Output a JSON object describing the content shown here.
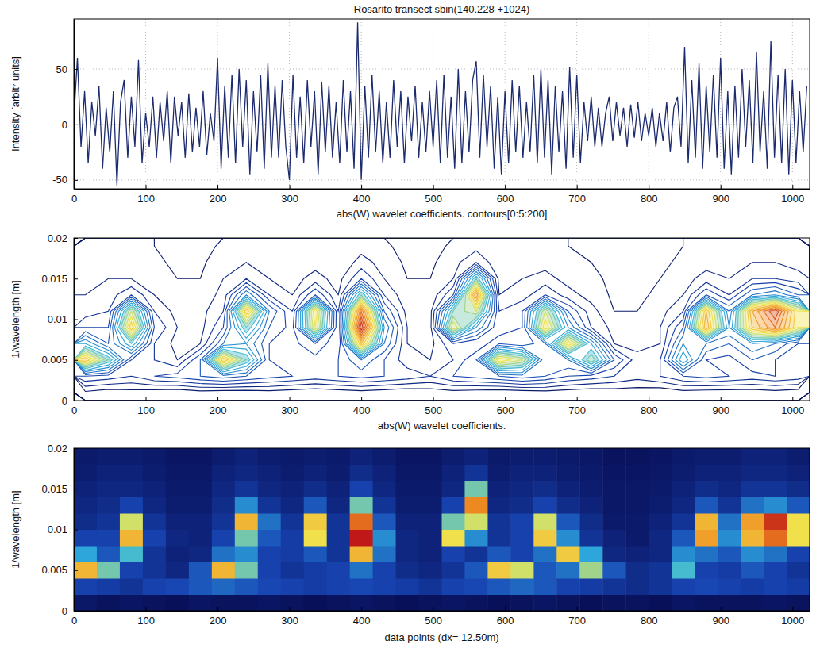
{
  "chart_data": [
    {
      "type": "line",
      "title": "Rosarito transect sbin(140.228 +1024)",
      "y_label": "Intensity [arbitr units]",
      "color": "#1c2a6e",
      "grid": true,
      "xlim": [
        0,
        1024
      ],
      "ylim": [
        -58,
        95
      ],
      "xticks": [
        0,
        100,
        200,
        300,
        400,
        500,
        600,
        700,
        800,
        900,
        1000
      ],
      "yticks": [
        -50,
        0,
        50
      ],
      "x": [
        0,
        5,
        10,
        15,
        20,
        25,
        30,
        35,
        40,
        45,
        50,
        55,
        60,
        65,
        70,
        75,
        80,
        85,
        90,
        95,
        100,
        105,
        110,
        115,
        120,
        125,
        130,
        135,
        140,
        145,
        150,
        155,
        160,
        165,
        170,
        175,
        180,
        185,
        190,
        195,
        200,
        205,
        210,
        215,
        220,
        225,
        230,
        235,
        240,
        245,
        250,
        255,
        260,
        265,
        270,
        275,
        280,
        285,
        290,
        295,
        300,
        305,
        310,
        315,
        320,
        325,
        330,
        335,
        340,
        345,
        350,
        355,
        360,
        365,
        370,
        375,
        380,
        385,
        390,
        395,
        400,
        405,
        410,
        415,
        420,
        425,
        430,
        435,
        440,
        445,
        450,
        455,
        460,
        465,
        470,
        475,
        480,
        485,
        490,
        495,
        500,
        505,
        510,
        515,
        520,
        525,
        530,
        535,
        540,
        545,
        550,
        555,
        560,
        565,
        570,
        575,
        580,
        585,
        590,
        595,
        600,
        605,
        610,
        615,
        620,
        625,
        630,
        635,
        640,
        645,
        650,
        655,
        660,
        665,
        670,
        675,
        680,
        685,
        690,
        695,
        700,
        705,
        710,
        715,
        720,
        725,
        730,
        735,
        740,
        745,
        750,
        755,
        760,
        765,
        770,
        775,
        780,
        785,
        790,
        795,
        800,
        805,
        810,
        815,
        820,
        825,
        830,
        835,
        840,
        845,
        850,
        855,
        860,
        865,
        870,
        875,
        880,
        885,
        890,
        895,
        900,
        905,
        910,
        915,
        920,
        925,
        930,
        935,
        940,
        945,
        950,
        955,
        960,
        965,
        970,
        975,
        980,
        985,
        990,
        995,
        1000,
        1005,
        1010,
        1015,
        1020
      ],
      "values": [
        5,
        60,
        -20,
        30,
        -35,
        20,
        -10,
        35,
        -40,
        15,
        -25,
        30,
        -55,
        20,
        40,
        -30,
        25,
        -20,
        58,
        -35,
        10,
        -20,
        25,
        -30,
        20,
        -15,
        30,
        -35,
        25,
        -10,
        20,
        -30,
        28,
        -25,
        15,
        -20,
        30,
        -28,
        10,
        -15,
        60,
        -40,
        35,
        -30,
        45,
        -35,
        50,
        -20,
        40,
        -45,
        30,
        -25,
        45,
        -40,
        55,
        -30,
        35,
        -30,
        40,
        -20,
        -50,
        45,
        -30,
        25,
        -35,
        40,
        -20,
        30,
        -45,
        38,
        -25,
        35,
        -30,
        20,
        -35,
        40,
        -25,
        30,
        -40,
        92,
        -50,
        35,
        -30,
        45,
        -25,
        30,
        -35,
        20,
        -30,
        40,
        -20,
        30,
        -35,
        25,
        -15,
        35,
        -30,
        20,
        -25,
        30,
        -20,
        40,
        -35,
        45,
        -30,
        25,
        -40,
        50,
        -35,
        30,
        -25,
        40,
        57,
        -30,
        45,
        -20,
        35,
        -40,
        25,
        -45,
        30,
        -35,
        40,
        -25,
        35,
        -30,
        20,
        -25,
        45,
        -35,
        50,
        -30,
        40,
        -45,
        35,
        -25,
        30,
        -40,
        52,
        -30,
        45,
        -35,
        20,
        -15,
        25,
        -20,
        15,
        -20,
        10,
        25,
        -15,
        20,
        -10,
        15,
        -20,
        18,
        -12,
        20,
        -15,
        10,
        -10,
        15,
        -20,
        10,
        -15,
        20,
        -25,
        15,
        25,
        -20,
        70,
        -35,
        40,
        -30,
        55,
        -40,
        35,
        -25,
        45,
        -30,
        60,
        -40,
        30,
        -45,
        35,
        -30,
        50,
        -20,
        40,
        -35,
        65,
        -25,
        30,
        -40,
        75,
        -30,
        45,
        -35,
        50,
        -45,
        40,
        -35,
        30,
        -25,
        35
      ]
    },
    {
      "type": "contour",
      "title": "abs(W) wavelet coefficients. contours[0:5:200]",
      "y_label": "1/wavelength [m]",
      "levels": [
        0,
        5,
        200
      ],
      "xlim": [
        0,
        1024
      ],
      "ylim": [
        0,
        0.02
      ],
      "xticks": [
        0,
        100,
        200,
        300,
        400,
        500,
        600,
        700,
        800,
        900,
        1000
      ],
      "yticks": [
        0,
        0.005,
        0.01,
        0.015,
        0.02
      ],
      "xbins": [
        0,
        32,
        64,
        96,
        128,
        160,
        192,
        224,
        256,
        288,
        320,
        352,
        384,
        416,
        448,
        480,
        512,
        544,
        576,
        608,
        640,
        672,
        704,
        736,
        768,
        800,
        832,
        864,
        896,
        928,
        960,
        992,
        1024
      ],
      "ybins": [
        0,
        0.002,
        0.004,
        0.006,
        0.008,
        0.01,
        0.012,
        0.014,
        0.016,
        0.018,
        0.02
      ],
      "z": [
        [
          14,
          12,
          13,
          12,
          11,
          13,
          12,
          12,
          13,
          12,
          11,
          12,
          13,
          12,
          11,
          12,
          13,
          12,
          11,
          12,
          13,
          12,
          11,
          12,
          12,
          11,
          13,
          12,
          12,
          12,
          13,
          12
        ],
        [
          30,
          28,
          25,
          30,
          32,
          35,
          38,
          35,
          32,
          30,
          28,
          30,
          32,
          30,
          28,
          25,
          30,
          32,
          35,
          38,
          35,
          30,
          28,
          25,
          22,
          25,
          30,
          32,
          30,
          28,
          30,
          28
        ],
        [
          85,
          60,
          30,
          25,
          20,
          35,
          85,
          60,
          30,
          25,
          28,
          30,
          40,
          30,
          22,
          20,
          25,
          35,
          80,
          70,
          35,
          40,
          65,
          35,
          22,
          25,
          55,
          30,
          28,
          35,
          30,
          25
        ],
        [
          50,
          35,
          55,
          25,
          18,
          20,
          40,
          45,
          30,
          28,
          35,
          25,
          85,
          40,
          20,
          18,
          30,
          25,
          35,
          30,
          40,
          80,
          50,
          20,
          18,
          20,
          45,
          40,
          35,
          45,
          40,
          30
        ],
        [
          30,
          30,
          85,
          30,
          20,
          18,
          30,
          60,
          35,
          28,
          75,
          25,
          115,
          45,
          20,
          18,
          75,
          45,
          25,
          30,
          80,
          45,
          25,
          18,
          15,
          20,
          35,
          90,
          45,
          85,
          100,
          75
        ],
        [
          22,
          25,
          70,
          25,
          18,
          18,
          25,
          85,
          40,
          25,
          80,
          25,
          100,
          35,
          18,
          18,
          60,
          70,
          25,
          30,
          70,
          35,
          22,
          15,
          15,
          18,
          25,
          85,
          40,
          90,
          110,
          75
        ],
        [
          20,
          22,
          30,
          20,
          16,
          16,
          22,
          45,
          25,
          20,
          35,
          20,
          60,
          25,
          16,
          16,
          30,
          95,
          20,
          22,
          30,
          22,
          18,
          14,
          14,
          16,
          20,
          35,
          25,
          40,
          45,
          35
        ],
        [
          18,
          20,
          20,
          18,
          15,
          15,
          20,
          25,
          20,
          18,
          22,
          18,
          30,
          20,
          15,
          15,
          20,
          60,
          18,
          20,
          22,
          18,
          16,
          14,
          14,
          15,
          18,
          22,
          20,
          25,
          25,
          22
        ],
        [
          16,
          18,
          18,
          16,
          14,
          14,
          18,
          20,
          18,
          16,
          18,
          16,
          22,
          18,
          14,
          14,
          18,
          25,
          16,
          18,
          18,
          16,
          15,
          13,
          13,
          14,
          16,
          18,
          18,
          20,
          20,
          18
        ],
        [
          15,
          16,
          16,
          15,
          13,
          13,
          16,
          18,
          16,
          15,
          16,
          15,
          18,
          16,
          13,
          13,
          16,
          18,
          15,
          16,
          16,
          15,
          14,
          12,
          12,
          13,
          15,
          16,
          16,
          18,
          18,
          16
        ]
      ]
    },
    {
      "type": "heatmap",
      "title": "abs(W) wavelet coefficients.",
      "y_label": "1/wavelength [m]",
      "x_label": "data points  (dx= 12.50m)",
      "xlim": [
        0,
        1024
      ],
      "ylim": [
        0,
        0.02
      ],
      "xticks": [
        0,
        100,
        200,
        300,
        400,
        500,
        600,
        700,
        800,
        900,
        1000
      ],
      "yticks": [
        0,
        0.005,
        0.01,
        0.015,
        0.02
      ],
      "xbins": [
        0,
        32,
        64,
        96,
        128,
        160,
        192,
        224,
        256,
        288,
        320,
        352,
        384,
        416,
        448,
        480,
        512,
        544,
        576,
        608,
        640,
        672,
        704,
        736,
        768,
        800,
        832,
        864,
        896,
        928,
        960,
        992,
        1024
      ],
      "ybins": [
        0,
        0.002,
        0.004,
        0.006,
        0.008,
        0.01,
        0.012,
        0.014,
        0.016,
        0.018,
        0.02
      ],
      "z": [
        [
          14,
          12,
          13,
          12,
          11,
          13,
          12,
          12,
          13,
          12,
          11,
          12,
          13,
          12,
          11,
          12,
          13,
          12,
          11,
          12,
          13,
          12,
          11,
          12,
          12,
          11,
          13,
          12,
          12,
          12,
          13,
          12
        ],
        [
          30,
          28,
          25,
          30,
          32,
          35,
          38,
          35,
          32,
          30,
          28,
          30,
          32,
          30,
          28,
          25,
          30,
          32,
          35,
          38,
          35,
          30,
          28,
          25,
          22,
          25,
          30,
          32,
          30,
          28,
          30,
          28
        ],
        [
          85,
          60,
          30,
          25,
          20,
          35,
          85,
          60,
          30,
          25,
          28,
          30,
          40,
          30,
          22,
          20,
          25,
          35,
          80,
          70,
          35,
          40,
          65,
          35,
          22,
          25,
          55,
          30,
          28,
          35,
          30,
          25
        ],
        [
          50,
          35,
          55,
          25,
          18,
          20,
          40,
          45,
          30,
          28,
          35,
          25,
          85,
          40,
          20,
          18,
          30,
          25,
          35,
          30,
          40,
          80,
          50,
          20,
          18,
          20,
          45,
          40,
          35,
          45,
          40,
          30
        ],
        [
          30,
          30,
          85,
          30,
          20,
          18,
          30,
          60,
          35,
          28,
          75,
          25,
          115,
          45,
          20,
          18,
          75,
          45,
          25,
          30,
          80,
          45,
          25,
          18,
          15,
          20,
          35,
          90,
          45,
          85,
          100,
          75
        ],
        [
          22,
          25,
          70,
          25,
          18,
          18,
          25,
          85,
          40,
          25,
          80,
          25,
          100,
          35,
          18,
          18,
          60,
          70,
          25,
          30,
          70,
          35,
          22,
          15,
          15,
          18,
          25,
          85,
          40,
          90,
          110,
          75
        ],
        [
          20,
          22,
          30,
          20,
          16,
          16,
          22,
          45,
          25,
          20,
          35,
          20,
          60,
          25,
          16,
          16,
          30,
          95,
          20,
          22,
          30,
          22,
          18,
          14,
          14,
          16,
          20,
          35,
          25,
          40,
          45,
          35
        ],
        [
          18,
          20,
          20,
          18,
          15,
          15,
          20,
          25,
          20,
          18,
          22,
          18,
          30,
          20,
          15,
          15,
          20,
          60,
          18,
          20,
          22,
          18,
          16,
          14,
          14,
          15,
          18,
          22,
          20,
          25,
          25,
          22
        ],
        [
          16,
          18,
          18,
          16,
          14,
          14,
          18,
          20,
          18,
          16,
          18,
          16,
          22,
          18,
          14,
          14,
          18,
          25,
          16,
          18,
          18,
          16,
          15,
          13,
          13,
          14,
          16,
          18,
          18,
          20,
          20,
          18
        ],
        [
          15,
          16,
          16,
          15,
          13,
          13,
          16,
          18,
          16,
          15,
          16,
          15,
          18,
          16,
          13,
          13,
          16,
          18,
          15,
          16,
          16,
          15,
          14,
          12,
          12,
          13,
          15,
          16,
          16,
          18,
          18,
          16
        ]
      ]
    }
  ]
}
